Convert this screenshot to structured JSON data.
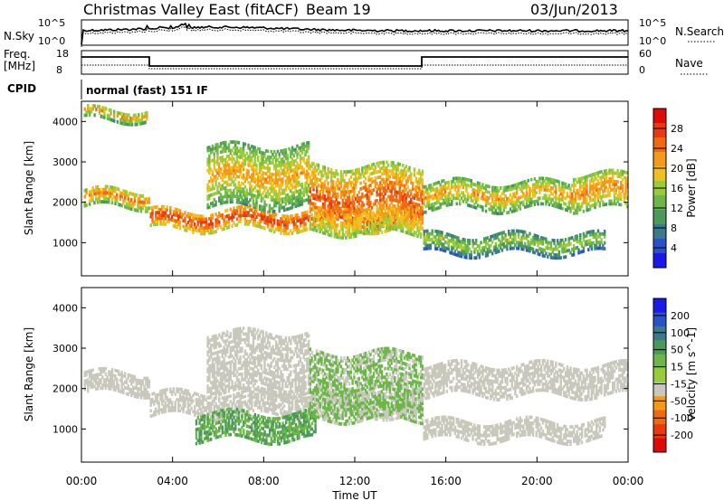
{
  "header": {
    "station": "Christmas Valley East (fitACF)",
    "beam": "Beam 19",
    "date": "03/Jun/2013"
  },
  "strips": {
    "nsky_label": "N.Sky",
    "nsearch_label": "N.Search",
    "nsky_ticks": [
      "10^5",
      "10^0"
    ],
    "right_ticks_top": [
      "10^5",
      "10^0"
    ],
    "freq_label_1": "Freq.",
    "freq_label_2": "[MHz]",
    "freq_ticks": [
      "18",
      "8"
    ],
    "nave_label": "Nave",
    "nave_ticks": [
      "60",
      "0"
    ],
    "cpid_label": "CPID",
    "cpid_text": "normal (fast) 151 IF"
  },
  "colors": {
    "power": [
      "#1a1ae6",
      "#2a52c8",
      "#3a7a8a",
      "#4c9a5a",
      "#6cb64a",
      "#9acc3a",
      "#f0c020",
      "#f59a18",
      "#ef6a12",
      "#e83a0e",
      "#dd0a0a"
    ],
    "velocity": [
      "#1a1ae6",
      "#2a52c8",
      "#3a7a8a",
      "#4c9a5a",
      "#6cb64a",
      "#9acc3a",
      "#c8c8bc",
      "#f59a18",
      "#ef6a12",
      "#e83a0e",
      "#dd0a0a"
    ]
  },
  "chart_data": [
    {
      "type": "heatmap",
      "name": "power",
      "ylabel": "Slant Range [km]",
      "xlabel": "Time UT",
      "colorbar_label": "Power [dB]",
      "colorbar_ticks": [
        "28",
        "24",
        "20",
        "16",
        "12",
        "8",
        "4"
      ],
      "ylim": [
        180,
        4500
      ],
      "yticks": [
        "1000",
        "2000",
        "3000",
        "4000"
      ],
      "xlim": [
        "00:00",
        "24:00"
      ],
      "xticks": [
        "00:00",
        "04:00",
        "08:00",
        "12:00",
        "16:00",
        "20:00",
        "00:00"
      ],
      "echo_bands": [
        {
          "t0": 0.1,
          "t1": 3.0,
          "range_km": [
            1850,
            2300
          ],
          "power_db": 20
        },
        {
          "t0": 0.1,
          "t1": 2.9,
          "range_km": [
            4000,
            4300
          ],
          "power_db": 18
        },
        {
          "t0": 3.0,
          "t1": 15.0,
          "range_km": [
            1300,
            1800
          ],
          "power_db": 24
        },
        {
          "t0": 5.5,
          "t1": 10.0,
          "range_km": [
            1850,
            3400
          ],
          "power_db": 18
        },
        {
          "t0": 10.0,
          "t1": 15.0,
          "range_km": [
            1200,
            2900
          ],
          "power_db": 22
        },
        {
          "t0": 15.0,
          "t1": 21.5,
          "range_km": [
            1800,
            2500
          ],
          "power_db": 18
        },
        {
          "t0": 21.5,
          "t1": 24.0,
          "range_km": [
            1800,
            2700
          ],
          "power_db": 20
        },
        {
          "t0": 15.0,
          "t1": 23.0,
          "range_km": [
            700,
            1200
          ],
          "power_db": 14
        }
      ]
    },
    {
      "type": "heatmap",
      "name": "velocity",
      "ylabel": "Slant Range [km]",
      "xlabel": "Time UT",
      "colorbar_label": "Velocity [m s^-1]",
      "colorbar_ticks": [
        "200",
        "100",
        "50",
        "15",
        "-15",
        "-50",
        "-100",
        "-200"
      ],
      "ylim": [
        180,
        4500
      ],
      "yticks": [
        "1000",
        "2000",
        "3000",
        "4000"
      ],
      "xlim": [
        "00:00",
        "24:00"
      ],
      "xticks": [
        "00:00",
        "04:00",
        "08:00",
        "12:00",
        "16:00",
        "20:00",
        "00:00"
      ],
      "echo_bands": [
        {
          "t0": 0.1,
          "t1": 3.0,
          "range_km": [
            1850,
            2400
          ],
          "velocity": 0
        },
        {
          "t0": 3.0,
          "t1": 15.0,
          "range_km": [
            1300,
            1900
          ],
          "velocity": 0
        },
        {
          "t0": 5.5,
          "t1": 10.0,
          "range_km": [
            1850,
            3400
          ],
          "velocity": 0
        },
        {
          "t0": 5.0,
          "t1": 10.3,
          "range_km": [
            700,
            1400
          ],
          "velocity": 40
        },
        {
          "t0": 10.0,
          "t1": 15.0,
          "range_km": [
            1200,
            2900
          ],
          "velocity": 20
        },
        {
          "t0": 15.0,
          "t1": 24.0,
          "range_km": [
            1800,
            2600
          ],
          "velocity": 0
        },
        {
          "t0": 15.0,
          "t1": 23.0,
          "range_km": [
            700,
            1200
          ],
          "velocity": 0
        }
      ]
    }
  ],
  "xaxis_title": "Time UT"
}
